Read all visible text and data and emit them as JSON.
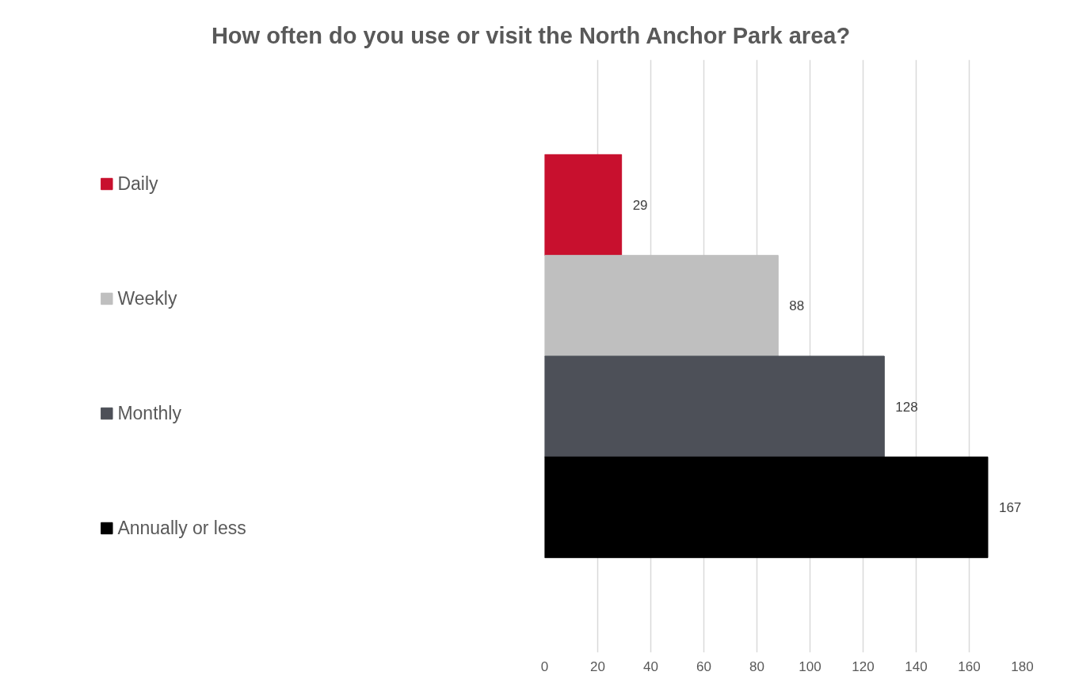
{
  "chart_data": {
    "type": "bar",
    "orientation": "horizontal",
    "title": "How often do you use or visit the North Anchor Park area?",
    "categories": [
      null
    ],
    "series": [
      {
        "name": "Daily",
        "color": "#c8102e",
        "values": [
          29
        ]
      },
      {
        "name": "Weekly",
        "color": "#bfbfbf",
        "values": [
          88
        ]
      },
      {
        "name": "Monthly",
        "color": "#4d5058",
        "values": [
          128
        ]
      },
      {
        "name": "Annually or less",
        "color": "#000000",
        "values": [
          167
        ]
      }
    ],
    "xlim": [
      0,
      180
    ],
    "xticks": [
      0,
      20,
      40,
      60,
      80,
      100,
      120,
      140,
      160,
      180
    ],
    "grid": "x",
    "legend": "left",
    "data_labels": true,
    "tick_labels": "x"
  }
}
